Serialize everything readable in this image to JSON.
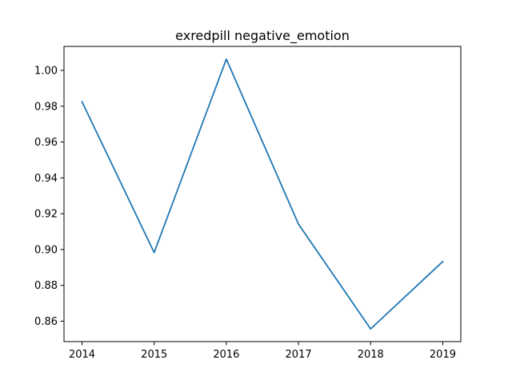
{
  "chart_data": {
    "type": "line",
    "title": "exredpill negative_emotion",
    "xlabel": "",
    "ylabel": "",
    "x": [
      2014,
      2015,
      2016,
      2017,
      2018,
      2019
    ],
    "series": [
      {
        "values": [
          0.9825,
          0.8983,
          1.0063,
          0.9142,
          0.8557,
          0.8933
        ],
        "color": "#1f77b4"
      }
    ],
    "xlim": [
      2013.75,
      2019.25
    ],
    "ylim": [
      0.8486,
      1.0134
    ],
    "xticks": [
      2014,
      2015,
      2016,
      2017,
      2018,
      2019
    ],
    "xtick_labels": [
      "2014",
      "2015",
      "2016",
      "2017",
      "2018",
      "2019"
    ],
    "yticks": [
      0.86,
      0.88,
      0.9,
      0.92,
      0.94,
      0.96,
      0.98,
      1.0
    ],
    "ytick_labels": [
      "0.86",
      "0.88",
      "0.90",
      "0.92",
      "0.94",
      "0.96",
      "0.98",
      "1.00"
    ],
    "grid": false,
    "legend": "none"
  }
}
